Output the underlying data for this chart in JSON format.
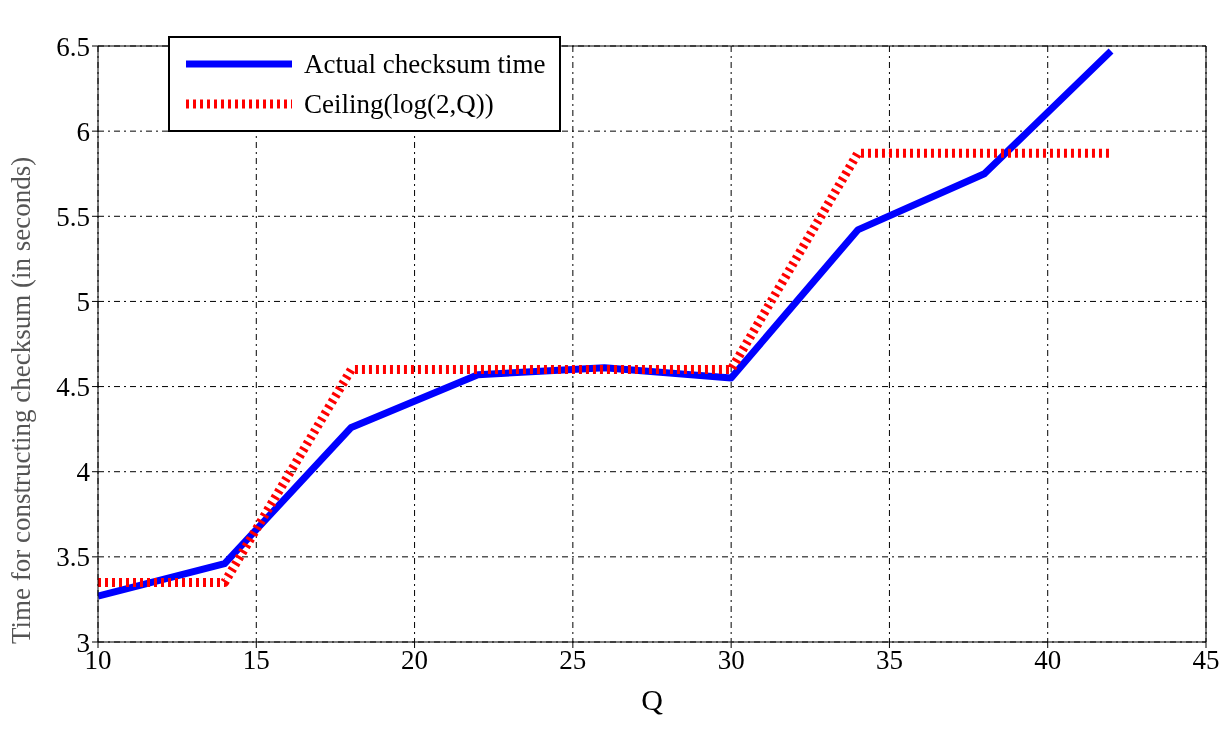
{
  "chart_data": {
    "type": "line",
    "xlabel": "Q",
    "ylabel": "Time for constructing checksum (in seconds)",
    "xlim": [
      10,
      45
    ],
    "xticks": [
      10,
      15,
      20,
      25,
      30,
      35,
      40,
      45
    ],
    "ylim": [
      3,
      6.5
    ],
    "yticks": [
      3,
      3.5,
      4,
      4.5,
      5,
      5.5,
      6,
      6.5
    ],
    "grid": true,
    "legend": "top left",
    "series": [
      {
        "name": "Actual checksum time",
        "color": "#0000ff",
        "line_style": "solid",
        "x": [
          10,
          14,
          18,
          22,
          26,
          30,
          34,
          38,
          42
        ],
        "values": [
          3.27,
          3.46,
          4.26,
          4.57,
          4.61,
          4.55,
          5.42,
          5.75,
          6.47
        ]
      },
      {
        "name": "Ceiling(log(2,Q))",
        "color": "#ff0000",
        "line_style": "dotted",
        "x": [
          10,
          14,
          18,
          30,
          34,
          42
        ],
        "values": [
          3.35,
          3.35,
          4.6,
          4.6,
          5.87,
          5.87
        ]
      }
    ]
  }
}
